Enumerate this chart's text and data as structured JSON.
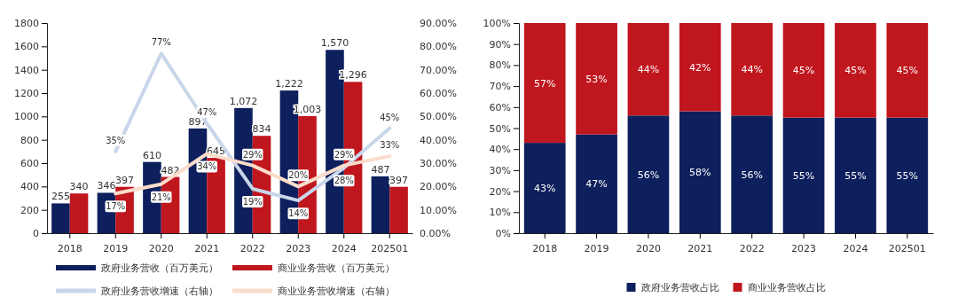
{
  "chart_data": [
    {
      "type": "bar",
      "categories": [
        "2018",
        "2019",
        "2020",
        "2021",
        "2022",
        "2023",
        "2024",
        "202501"
      ],
      "series": [
        {
          "name": "政府业务营收（百万美元）",
          "color": "#0d1f5c",
          "values": [
            255,
            346,
            610,
            897,
            1072,
            1222,
            1570,
            487
          ],
          "value_labels": [
            "255",
            "346",
            "610",
            "897",
            "1,072",
            "1,222",
            "1,570",
            "487"
          ]
        },
        {
          "name": "商业业务营收（百万美元）",
          "color": "#c0161e",
          "values": [
            340,
            397,
            482,
            645,
            834,
            1003,
            1296,
            397
          ],
          "value_labels": [
            "340",
            "397",
            "482",
            "645",
            "834",
            "1,003",
            "1,296",
            "397"
          ]
        },
        {
          "name": "政府业务营收增速（右轴）",
          "type": "line",
          "axis": "y2",
          "color": "#c9d6ea",
          "values": [
            null,
            35,
            77,
            47,
            19,
            14,
            28,
            45
          ],
          "value_labels": [
            null,
            "35%",
            "77%",
            "47%",
            "19%",
            "14%",
            "28%",
            "45%"
          ]
        },
        {
          "name": "商业业务营收增速（右轴）",
          "type": "line",
          "axis": "y2",
          "color": "#fbdccb",
          "values": [
            null,
            17,
            21,
            34,
            29,
            20,
            29,
            33
          ],
          "value_labels": [
            null,
            "17%",
            "21%",
            "34%",
            "29%",
            "20%",
            "29%",
            "33%"
          ]
        }
      ],
      "ylim": [
        0,
        1800
      ],
      "yticks": [
        0,
        200,
        400,
        600,
        800,
        1000,
        1200,
        1400,
        1600,
        1800
      ],
      "y2lim": [
        0,
        90
      ],
      "y2ticks": [
        {
          "value": 0,
          "label": "0.00%"
        },
        {
          "value": 10,
          "label": "10.00%"
        },
        {
          "value": 20,
          "label": "20.00%"
        },
        {
          "value": 30,
          "label": "30.00%"
        },
        {
          "value": 40,
          "label": "40.00%"
        },
        {
          "value": 50,
          "label": "50.00%"
        },
        {
          "value": 60,
          "label": "60.00%"
        },
        {
          "value": 70,
          "label": "70.00%"
        },
        {
          "value": 80,
          "label": "80.00%"
        },
        {
          "value": 90,
          "label": "90.00%"
        }
      ],
      "legend": "bottom",
      "marker": "none",
      "line_style": "solid",
      "grid": false
    },
    {
      "type": "bar",
      "stacked": true,
      "categories": [
        "2018",
        "2019",
        "2020",
        "2021",
        "2022",
        "2023",
        "2024",
        "202501"
      ],
      "series": [
        {
          "name": "政府业务营收占比",
          "color": "#0d1f5c",
          "values": [
            43,
            47,
            56,
            58,
            56,
            55,
            55,
            55
          ],
          "value_labels": [
            "43%",
            "47%",
            "56%",
            "58%",
            "56%",
            "55%",
            "55%",
            "55%"
          ]
        },
        {
          "name": "商业业务营收占比",
          "color": "#c0161e",
          "values": [
            57,
            53,
            44,
            42,
            44,
            45,
            45,
            45
          ],
          "value_labels": [
            "57%",
            "53%",
            "44%",
            "42%",
            "44%",
            "45%",
            "45%",
            "45%"
          ]
        }
      ],
      "ylim": [
        0,
        100
      ],
      "yticks": [
        {
          "value": 0,
          "label": "0%"
        },
        {
          "value": 10,
          "label": "10%"
        },
        {
          "value": 20,
          "label": "20%"
        },
        {
          "value": 30,
          "label": "30%"
        },
        {
          "value": 40,
          "label": "40%"
        },
        {
          "value": 50,
          "label": "50%"
        },
        {
          "value": 60,
          "label": "60%"
        },
        {
          "value": 70,
          "label": "70%"
        },
        {
          "value": 80,
          "label": "80%"
        },
        {
          "value": 90,
          "label": "90%"
        },
        {
          "value": 100,
          "label": "100%"
        }
      ],
      "legend": "bottom",
      "grid": false
    }
  ]
}
